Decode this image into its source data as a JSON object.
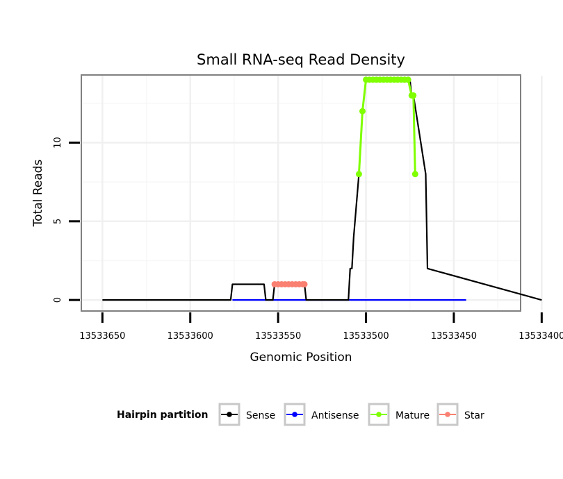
{
  "chart_data": {
    "type": "line",
    "title": "Small RNA-seq Read Density",
    "xlabel": "Genomic Position",
    "ylabel": "Total Reads",
    "x_reversed": true,
    "xlim": [
      13533662,
      13533412
    ],
    "ylim": [
      -0.7,
      14.3
    ],
    "x_ticks": [
      13533650,
      13533600,
      13533550,
      13533500,
      13533450,
      13533400
    ],
    "x_tick_labels": [
      "13533650",
      "13533600",
      "13533550",
      "13533500",
      "13533450",
      "13533400"
    ],
    "y_ticks": [
      0,
      5,
      10
    ],
    "y_tick_labels": [
      "0",
      "5",
      "10"
    ],
    "grid": true,
    "legend": {
      "title": "Hairpin partition",
      "position": "bottom",
      "entries": [
        {
          "label": "Sense",
          "color": "#000000"
        },
        {
          "label": "Antisense",
          "color": "#0000ff"
        },
        {
          "label": "Mature",
          "color": "#7fff00"
        },
        {
          "label": "Star",
          "color": "#fa8072"
        }
      ]
    },
    "series": [
      {
        "name": "Sense",
        "color": "#000000",
        "markers": false,
        "x": [
          13533650,
          13533577,
          13533576,
          13533558,
          13533557,
          13533553,
          13533552,
          13533535,
          13533534,
          13533510,
          13533509,
          13533508,
          13533507,
          13533504,
          13533502,
          13533500,
          13533499,
          13533498,
          13533497,
          13533476,
          13533475,
          13533474,
          13533473,
          13533466,
          13533465,
          13533400
        ],
        "y": [
          0,
          0,
          1,
          1,
          0,
          0,
          1,
          1,
          0,
          0,
          2,
          2,
          4,
          8,
          12,
          14,
          14,
          14,
          14,
          14,
          14,
          13,
          13,
          8,
          2,
          0
        ]
      },
      {
        "name": "Antisense",
        "color": "#0000ff",
        "markers": false,
        "x": [
          13533576,
          13533443
        ],
        "y": [
          0,
          0
        ]
      },
      {
        "name": "Mature",
        "color": "#7fff00",
        "markers": true,
        "x": [
          13533504,
          13533502,
          13533500,
          13533498,
          13533496,
          13533494,
          13533492,
          13533490,
          13533488,
          13533486,
          13533484,
          13533482,
          13533480,
          13533478,
          13533476,
          13533474,
          13533473,
          13533472
        ],
        "y": [
          8,
          12,
          14,
          14,
          14,
          14,
          14,
          14,
          14,
          14,
          14,
          14,
          14,
          14,
          14,
          13,
          13,
          8
        ]
      },
      {
        "name": "Star",
        "color": "#fa8072",
        "markers": true,
        "x": [
          13533552,
          13533550,
          13533548,
          13533546,
          13533544,
          13533542,
          13533540,
          13533538,
          13533536,
          13533535
        ],
        "y": [
          1,
          1,
          1,
          1,
          1,
          1,
          1,
          1,
          1,
          1
        ]
      }
    ]
  }
}
